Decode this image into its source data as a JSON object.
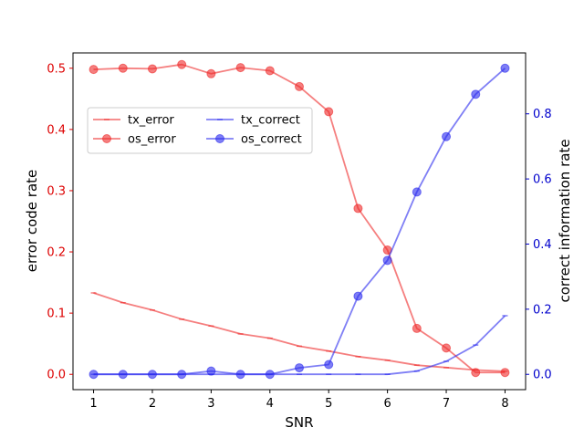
{
  "chart_data": {
    "type": "line",
    "title": "",
    "xlabel": "SNR",
    "ylabel_left": "error code rate",
    "ylabel_right": "correct information rate",
    "x": [
      1,
      1.5,
      2,
      2.5,
      3,
      3.5,
      4,
      4.5,
      5,
      5.5,
      6,
      6.5,
      7,
      7.5,
      8
    ],
    "xlim": [
      0.65,
      8.35
    ],
    "xticks": [
      1,
      2,
      3,
      4,
      5,
      6,
      7,
      8
    ],
    "ylim_left": [
      -0.025,
      0.525
    ],
    "yticks_left": [
      0.0,
      0.1,
      0.2,
      0.3,
      0.4,
      0.5
    ],
    "ytick_labels_left": [
      "0.0",
      "0.1",
      "0.2",
      "0.3",
      "0.4",
      "0.5"
    ],
    "ylim_right": [
      -0.047,
      0.987
    ],
    "yticks_right": [
      0.0,
      0.2,
      0.4,
      0.6,
      0.8
    ],
    "ytick_labels_right": [
      "0.0",
      "0.2",
      "0.4",
      "0.6",
      "0.8"
    ],
    "grid": false,
    "legend_position": "upper-left",
    "left_axis_color": "#dd0000",
    "right_axis_color": "#0000cc",
    "series": [
      {
        "name": "tx_error",
        "axis": "left",
        "color": "#ef2929",
        "marker": "line",
        "values": [
          0.133,
          0.117,
          0.105,
          0.09,
          0.079,
          0.066,
          0.059,
          0.046,
          0.038,
          0.029,
          0.023,
          0.015,
          0.011,
          0.007,
          0.005
        ]
      },
      {
        "name": "os_error",
        "axis": "left",
        "color": "#ef2929",
        "marker": "circle",
        "values": [
          0.498,
          0.5,
          0.499,
          0.506,
          0.491,
          0.501,
          0.496,
          0.47,
          0.429,
          0.271,
          0.203,
          0.075,
          0.043,
          0.003,
          0.003
        ]
      },
      {
        "name": "tx_correct",
        "axis": "right",
        "color": "#2929ef",
        "marker": "line",
        "values": [
          0.0,
          0.0,
          0.0,
          0.0,
          0.0,
          0.0,
          0.0,
          0.0,
          0.0,
          0.0,
          0.0,
          0.01,
          0.04,
          0.09,
          0.18
        ]
      },
      {
        "name": "os_correct",
        "axis": "right",
        "color": "#2929ef",
        "marker": "circle",
        "values": [
          0.0,
          0.0,
          0.0,
          0.0,
          0.01,
          0.0,
          0.0,
          0.02,
          0.03,
          0.24,
          0.35,
          0.56,
          0.73,
          0.86,
          0.94
        ]
      }
    ]
  }
}
